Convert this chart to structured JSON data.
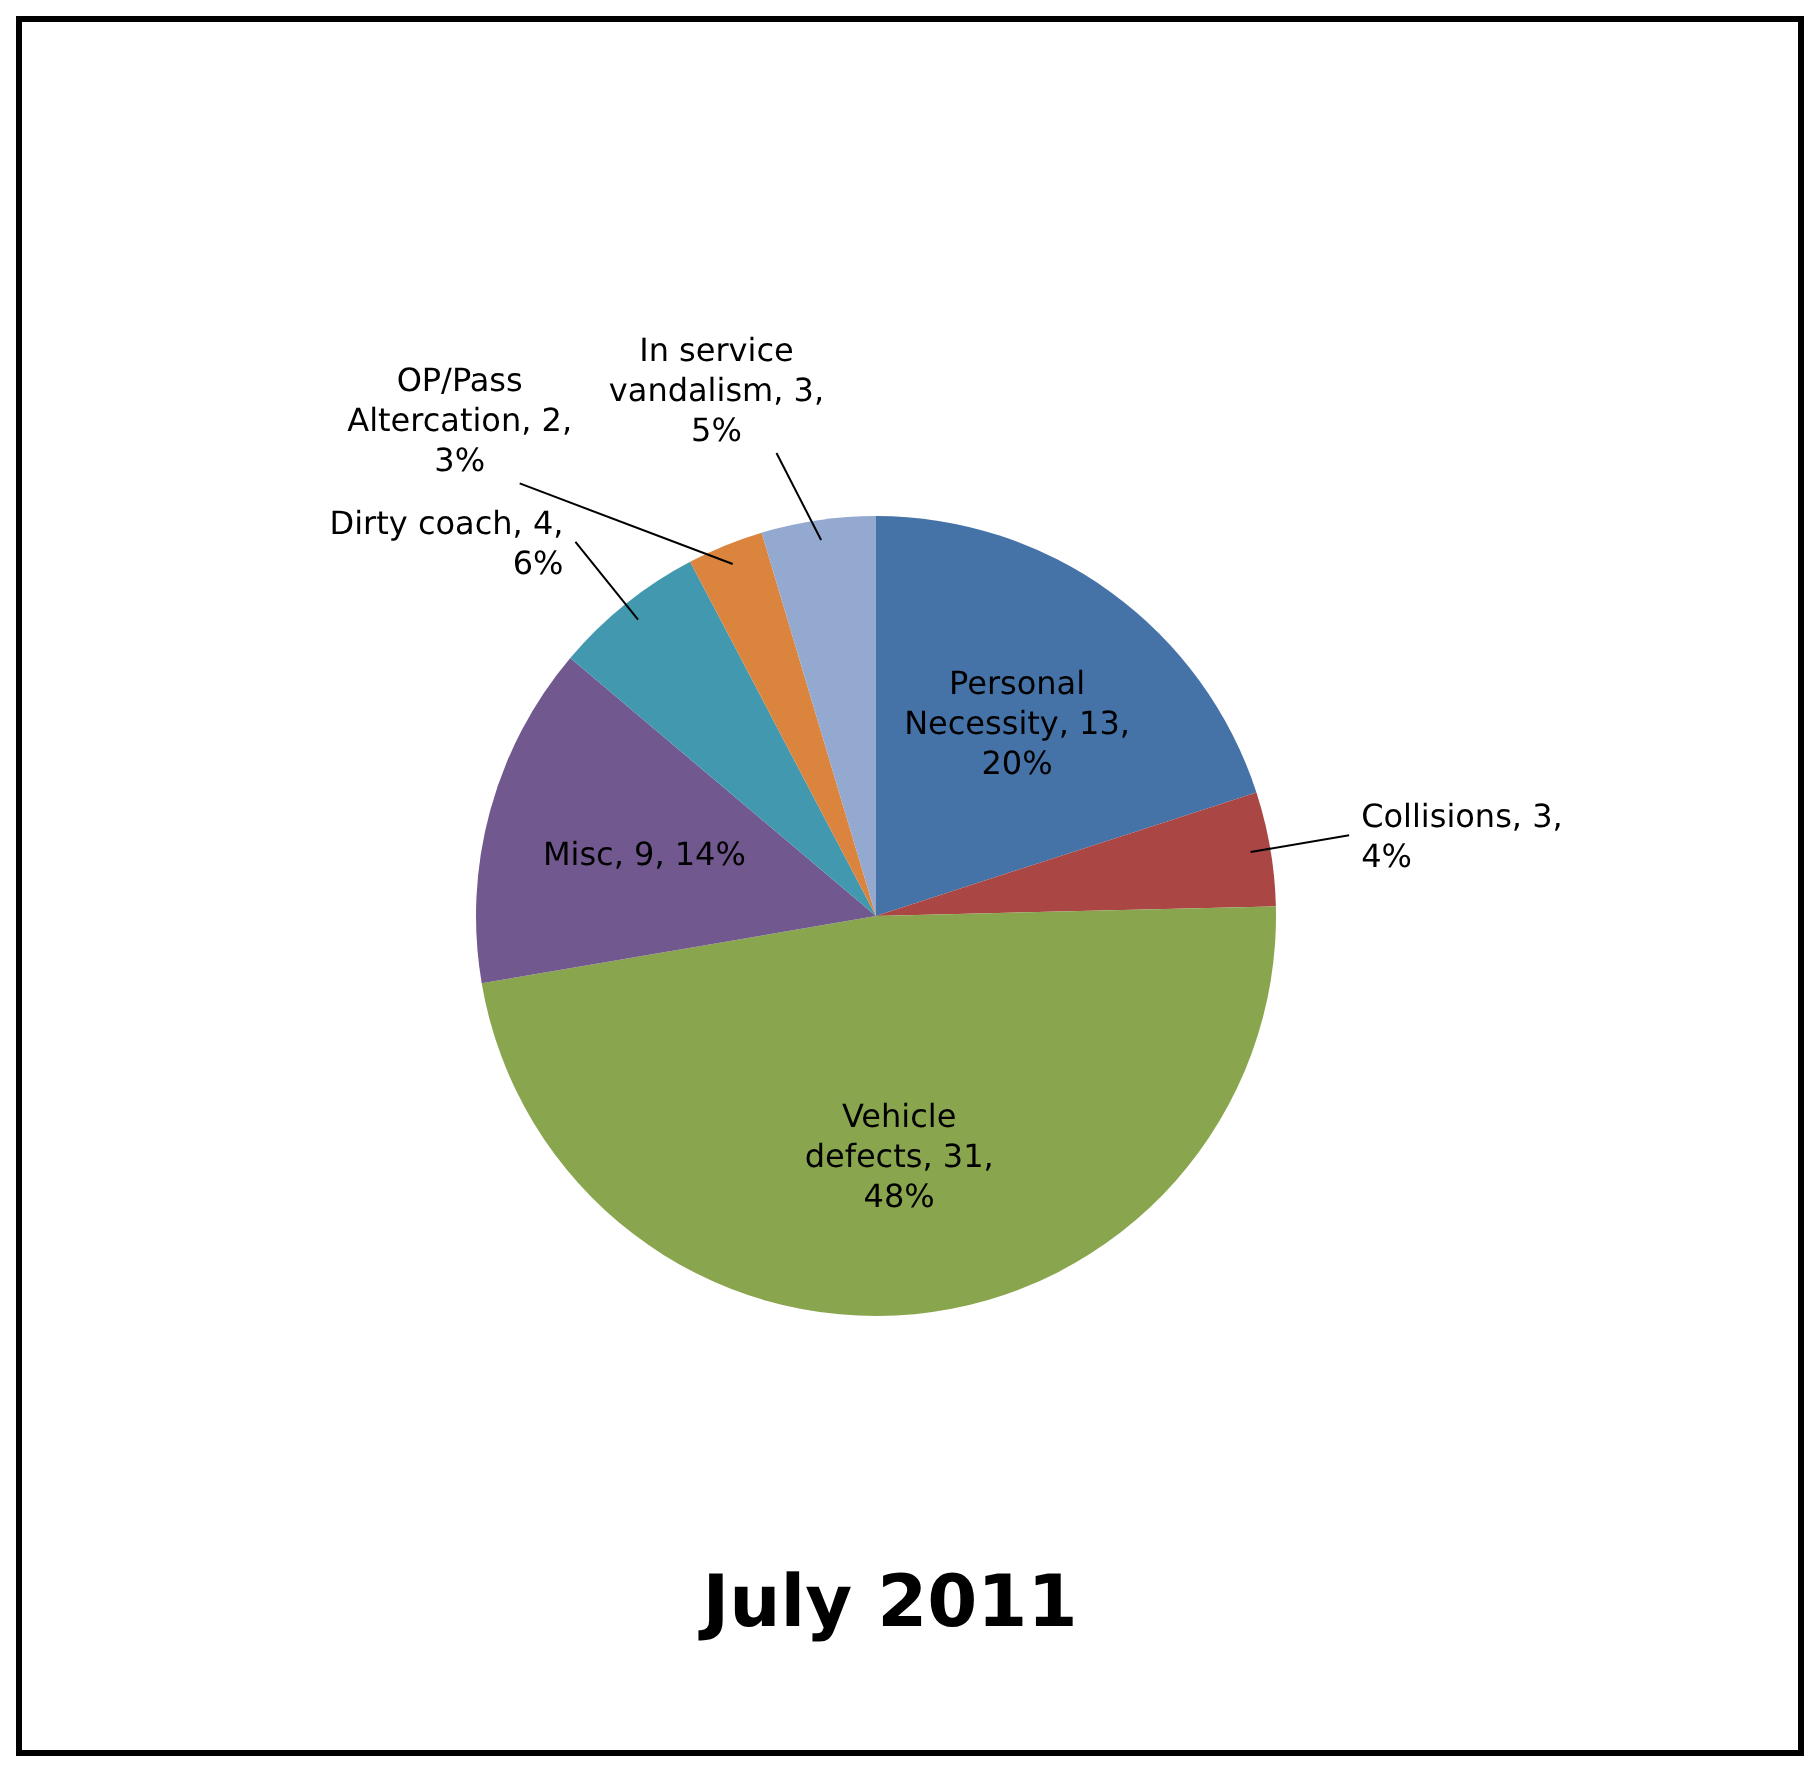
{
  "chart_data": {
    "type": "pie",
    "title": "July 2011",
    "categories": [
      "Personal Necessity",
      "Collisions",
      "Vehicle defects",
      "Misc",
      "Dirty coach",
      "OP/Pass Altercation",
      "In service vandalism"
    ],
    "values": [
      13,
      3,
      31,
      9,
      4,
      2,
      3
    ],
    "value_labels": [
      "13, 20%",
      "3, 4%",
      "31, 48%",
      "9, 14%",
      "4, 6%",
      "2, 3%",
      "3, 5%"
    ],
    "colors": [
      "#4572a7",
      "#aa4643",
      "#89a54e",
      "#71588f",
      "#4198af",
      "#db843d",
      "#93a9cf"
    ],
    "legend": false
  }
}
